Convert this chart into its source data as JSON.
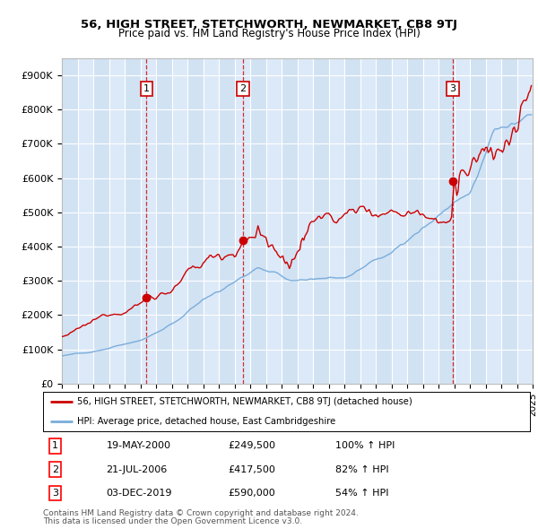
{
  "title": "56, HIGH STREET, STETCHWORTH, NEWMARKET, CB8 9TJ",
  "subtitle": "Price paid vs. HM Land Registry's House Price Index (HPI)",
  "red_label": "56, HIGH STREET, STETCHWORTH, NEWMARKET, CB8 9TJ (detached house)",
  "blue_label": "HPI: Average price, detached house, East Cambridgeshire",
  "transactions": [
    {
      "num": 1,
      "date": "19-MAY-2000",
      "price": 249500,
      "pct": "100%",
      "year": 2000.38
    },
    {
      "num": 2,
      "date": "21-JUL-2006",
      "price": 417500,
      "pct": "82%",
      "year": 2006.55
    },
    {
      "num": 3,
      "date": "03-DEC-2019",
      "price": 590000,
      "pct": "54%",
      "year": 2019.92
    }
  ],
  "footer1": "Contains HM Land Registry data © Crown copyright and database right 2024.",
  "footer2": "This data is licensed under the Open Government Licence v3.0.",
  "ylim": [
    0,
    950000
  ],
  "yticks": [
    0,
    100000,
    200000,
    300000,
    400000,
    500000,
    600000,
    700000,
    800000,
    900000
  ],
  "ytick_labels": [
    "£0",
    "£100K",
    "£200K",
    "£300K",
    "£400K",
    "£500K",
    "£600K",
    "£700K",
    "£800K",
    "£900K"
  ],
  "plot_bg": "#dce9f8",
  "red_color": "#cc0000",
  "blue_color": "#7aaddb",
  "grid_color": "#ffffff",
  "band_color": "#c8ddf0",
  "row_data": [
    [
      1,
      "19-MAY-2000",
      "£249,500",
      "100% ↑ HPI"
    ],
    [
      2,
      "21-JUL-2006",
      "£417,500",
      "82% ↑ HPI"
    ],
    [
      3,
      "03-DEC-2019",
      "£590,000",
      "54% ↑ HPI"
    ]
  ]
}
